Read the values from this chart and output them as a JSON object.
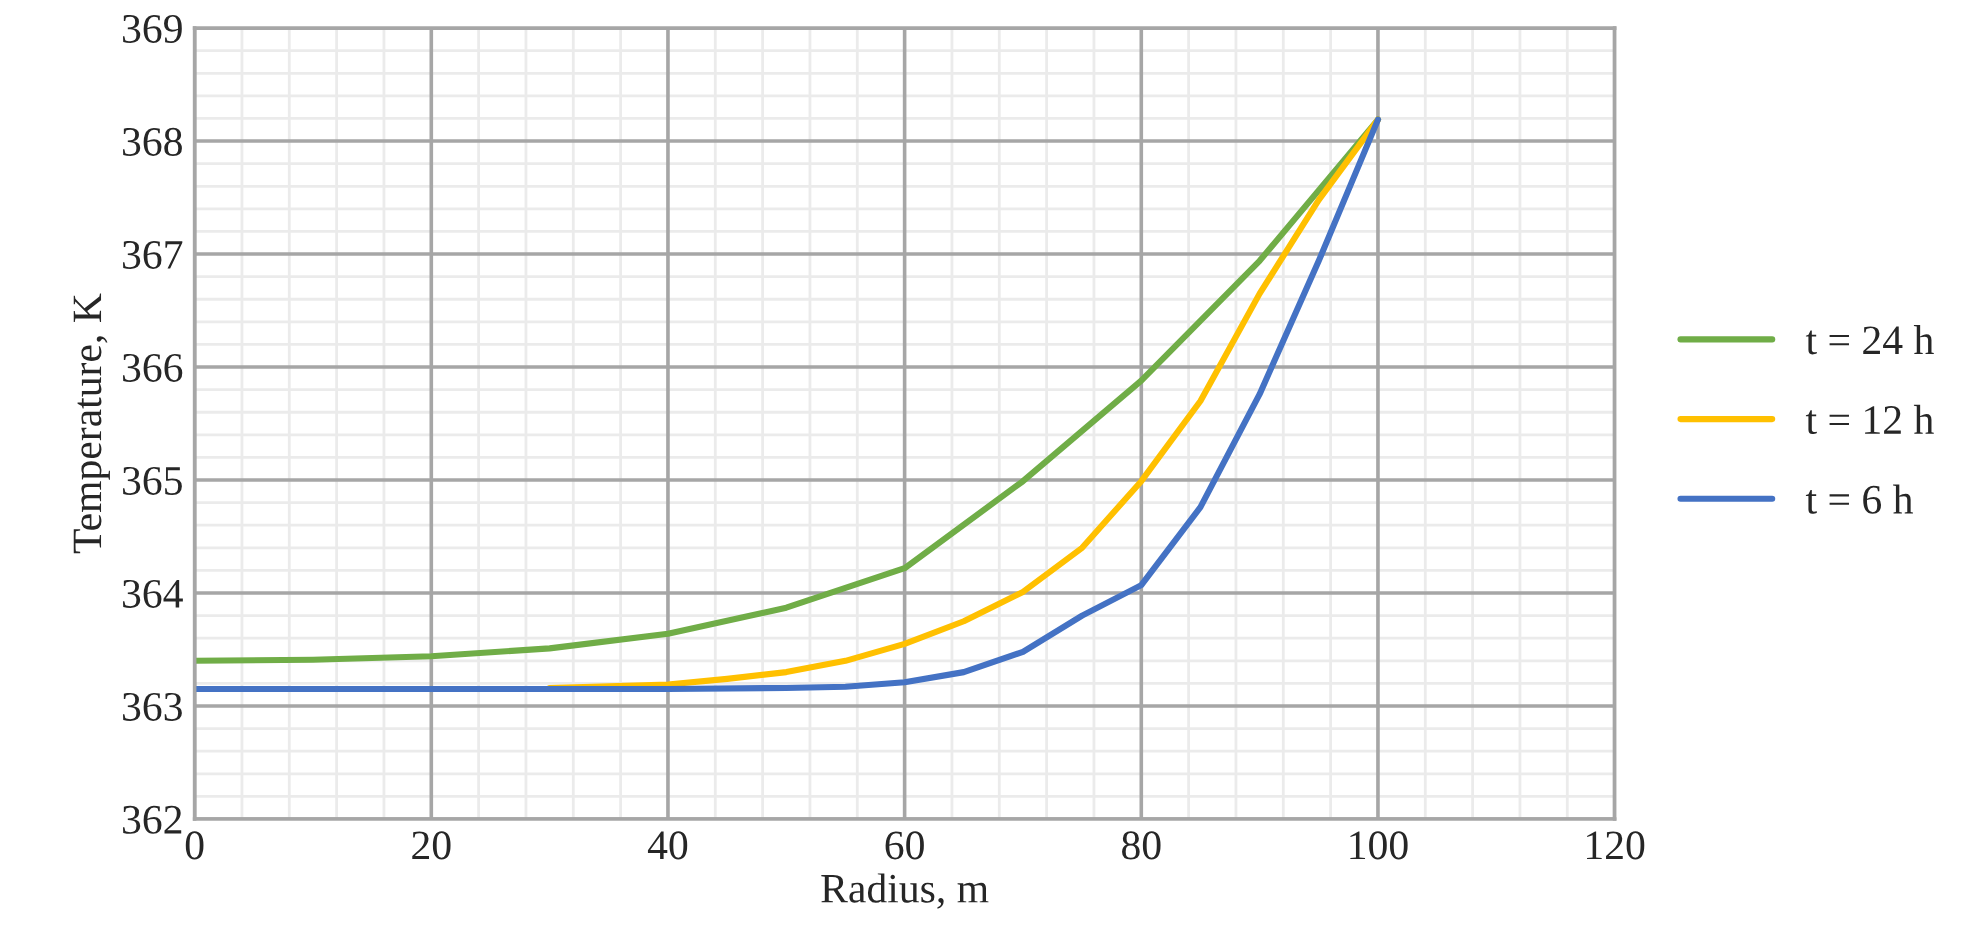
{
  "chart_data": {
    "type": "line",
    "xlabel": "Radius, m",
    "ylabel": "Temperature, K",
    "xlim": [
      0,
      120
    ],
    "xticks": [
      0,
      20,
      40,
      60,
      80,
      100,
      120
    ],
    "ylim": [
      362,
      369
    ],
    "yticks": [
      362,
      363,
      364,
      365,
      366,
      367,
      368,
      369
    ],
    "grid": true,
    "legend": "right",
    "marker": "none",
    "line_style": "solid",
    "series": [
      {
        "name": "t = 24 h",
        "color": "#70ad47",
        "x": [
          0,
          10,
          20,
          30,
          40,
          50,
          60,
          70,
          80,
          90,
          100
        ],
        "values": [
          363.4,
          363.41,
          363.44,
          363.51,
          363.64,
          363.87,
          364.22,
          364.99,
          365.88,
          366.94,
          368.19
        ]
      },
      {
        "name": "t = 12 h",
        "color": "#ffc000",
        "x": [
          30,
          40,
          45,
          50,
          55,
          60,
          65,
          70,
          75,
          80,
          85,
          90,
          95,
          100
        ],
        "values": [
          363.16,
          363.19,
          363.24,
          363.3,
          363.4,
          363.55,
          363.75,
          364.01,
          364.4,
          364.99,
          365.7,
          366.65,
          367.48,
          368.19
        ]
      },
      {
        "name": "t = 6 h",
        "color": "#4472c4",
        "x": [
          0,
          10,
          20,
          30,
          40,
          50,
          55,
          60,
          65,
          70,
          75,
          80,
          85,
          90,
          95,
          100
        ],
        "values": [
          363.15,
          363.15,
          363.15,
          363.15,
          363.15,
          363.16,
          363.17,
          363.21,
          363.3,
          363.48,
          363.8,
          364.07,
          364.76,
          365.76,
          366.94,
          368.19
        ]
      }
    ]
  }
}
